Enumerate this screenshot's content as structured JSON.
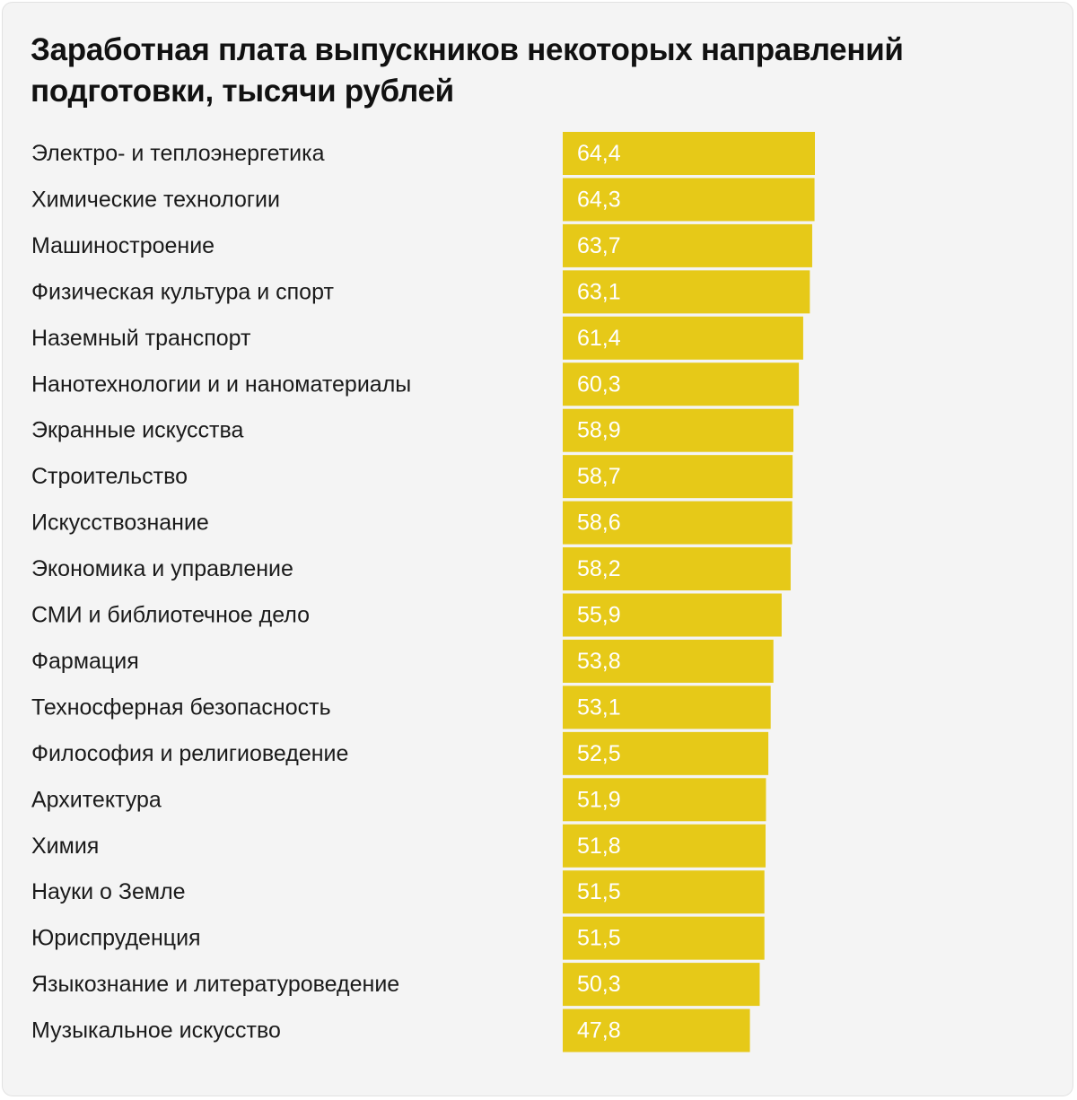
{
  "chart_data": {
    "type": "bar",
    "orientation": "horizontal",
    "title": "Заработная плата выпускников некоторых направлений подготовки, тысячи рублей",
    "categories": [
      "Электро- и теплоэнергетика",
      "Химические технологии",
      "Машиностроение",
      "Физическая культура и спорт",
      "Наземный транспорт",
      "Нанотехнологии и и наноматериалы",
      "Экранные искусства",
      "Строительство",
      "Искусствознание",
      "Экономика и управление",
      "СМИ и библиотечное дело",
      "Фармация",
      "Техносферная безопасность",
      "Философия и религиоведение",
      "Архитектура",
      "Химия",
      "Науки о Земле",
      "Юриспруденция",
      "Языкознание и литературоведение",
      "Музыкальное искусство"
    ],
    "values": [
      64.4,
      64.3,
      63.7,
      63.1,
      61.4,
      60.3,
      58.9,
      58.7,
      58.6,
      58.2,
      55.9,
      53.8,
      53.1,
      52.5,
      51.9,
      51.8,
      51.5,
      51.5,
      50.3,
      47.8
    ],
    "value_labels": [
      "64,4",
      "64,3",
      "63,7",
      "63,1",
      "61,4",
      "60,3",
      "58,9",
      "58,7",
      "58,6",
      "58,2",
      "55,9",
      "53,8",
      "53,1",
      "52,5",
      "51,9",
      "51,8",
      "51,5",
      "51,5",
      "50,3",
      "47,8"
    ],
    "xlim": [
      0,
      64.4
    ],
    "grid": false,
    "bar_color": "#e6c918",
    "background_color": "#f4f4f4"
  }
}
